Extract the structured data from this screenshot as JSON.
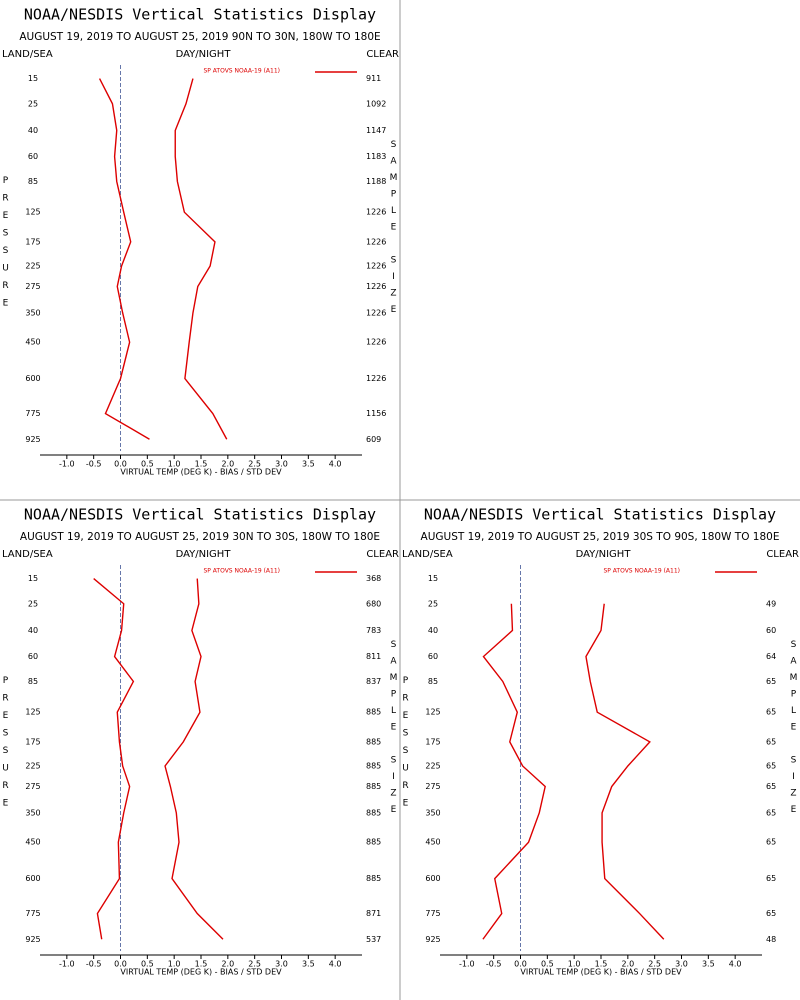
{
  "chart_data": [
    {
      "type": "line",
      "title": "NOAA/NESDIS Vertical Statistics Display",
      "subtitle": "AUGUST 19, 2019 TO AUGUST 25, 2019 90N TO 30N, 180W TO 180E",
      "land_sea_label": "LAND/SEA",
      "day_night_label": "DAY/NIGHT",
      "clear_label": "CLEAR",
      "ylabel": "PRESSURE",
      "y2label": "SAMPLE SIZE",
      "xlabel": "VIRTUAL TEMP (DEG K) - BIAS / STD DEV",
      "xlim": [
        -1.5,
        4.5
      ],
      "xticks": [
        {
          "value": -1,
          "label": "-1.0"
        },
        -0.5,
        {
          "value": 0,
          "label": "0.0"
        },
        0.5,
        {
          "value": 1,
          "label": "1.0"
        },
        1.5,
        {
          "value": 2,
          "label": "2.0"
        },
        2.5,
        {
          "value": 3,
          "label": "3.0"
        },
        3.5,
        {
          "value": 4,
          "label": "4.0"
        }
      ],
      "ylim": [
        10,
        1000
      ],
      "yticks": [
        15,
        25,
        40,
        60,
        85,
        125,
        175,
        225,
        275,
        350,
        450,
        600,
        775,
        925
      ],
      "sample_sizes": [
        911,
        1092,
        1147,
        1183,
        1188,
        1226,
        1226,
        1226,
        1226,
        1226,
        1226,
        1226,
        1156,
        609
      ],
      "zero_line": true,
      "series": [
        {
          "name": "SP ATOVS NOAA-19 (A11)",
          "color": "#dd0000",
          "values": [
            -0.39,
            -0.15,
            -0.07,
            -0.11,
            -0.07,
            0.06,
            0.19,
            0.02,
            -0.06,
            0.04,
            0.17,
            0,
            -0.28,
            0.54
          ]
        },
        {
          "color": "#dd0000",
          "values": [
            1.35,
            1.22,
            1.02,
            1.02,
            1.06,
            1.19,
            1.76,
            1.67,
            1.44,
            1.35,
            1.28,
            1.2,
            1.72,
            1.98
          ]
        }
      ]
    },
    {
      "type": "line",
      "title": "NOAA/NESDIS Vertical Statistics Display",
      "subtitle": "AUGUST 19, 2019 TO AUGUST 25, 2019 30N TO 30S, 180W TO 180E",
      "land_sea_label": "LAND/SEA",
      "day_night_label": "DAY/NIGHT",
      "clear_label": "CLEAR",
      "ylabel": "PRESSURE",
      "y2label": "SAMPLE SIZE",
      "xlabel": "VIRTUAL TEMP (DEG K) - BIAS / STD DEV",
      "xlim": [
        -1.5,
        4.5
      ],
      "xticks": [
        {
          "value": -1,
          "label": "-1.0"
        },
        -0.5,
        {
          "value": 0,
          "label": "0.0"
        },
        0.5,
        {
          "value": 1,
          "label": "1.0"
        },
        1.5,
        {
          "value": 2,
          "label": "2.0"
        },
        2.5,
        {
          "value": 3,
          "label": "3.0"
        },
        3.5,
        {
          "value": 4,
          "label": "4.0"
        }
      ],
      "ylim": [
        10,
        1000
      ],
      "yticks": [
        15,
        25,
        40,
        60,
        85,
        125,
        175,
        225,
        275,
        350,
        450,
        600,
        775,
        925
      ],
      "sample_sizes": [
        368,
        680,
        783,
        811,
        837,
        885,
        885,
        885,
        885,
        885,
        885,
        885,
        871,
        537
      ],
      "zero_line": true,
      "series": [
        {
          "name": "SP ATOVS NOAA-19 (A11)",
          "color": "#dd0000",
          "values": [
            -0.5,
            0.06,
            0.02,
            -0.11,
            0.24,
            -0.06,
            -0.02,
            0.04,
            0.17,
            0.06,
            -0.04,
            -0.02,
            -0.43,
            -0.35
          ]
        },
        {
          "color": "#dd0000",
          "values": [
            1.43,
            1.46,
            1.33,
            1.5,
            1.39,
            1.48,
            1.17,
            0.83,
            0.93,
            1.04,
            1.09,
            0.96,
            1.43,
            1.91
          ]
        }
      ]
    },
    {
      "type": "line",
      "title": "NOAA/NESDIS Vertical Statistics Display",
      "subtitle": "AUGUST 19, 2019 TO AUGUST 25, 2019 30S TO 90S, 180W TO 180E",
      "land_sea_label": "LAND/SEA",
      "day_night_label": "DAY/NIGHT",
      "clear_label": "CLEAR",
      "ylabel": "PRESSURE",
      "y2label": "SAMPLE SIZE",
      "xlabel": "VIRTUAL TEMP (DEG K) - BIAS / STD DEV",
      "xlim": [
        -1.5,
        4.5
      ],
      "xticks": [
        {
          "value": -1,
          "label": "-1.0"
        },
        -0.5,
        {
          "value": 0,
          "label": "0.0"
        },
        0.5,
        {
          "value": 1,
          "label": "1.0"
        },
        1.5,
        {
          "value": 2,
          "label": "2.0"
        },
        2.5,
        {
          "value": 3,
          "label": "3.0"
        },
        3.5,
        {
          "value": 4,
          "label": "4.0"
        }
      ],
      "ylim": [
        10,
        1000
      ],
      "yticks": [
        15,
        25,
        40,
        60,
        85,
        125,
        175,
        225,
        275,
        350,
        450,
        600,
        775,
        925
      ],
      "sample_sizes": [
        null,
        49,
        60,
        64,
        65,
        65,
        65,
        65,
        65,
        65,
        65,
        65,
        65,
        48
      ],
      "zero_line": true,
      "series": [
        {
          "name": "SP ATOVS NOAA-19 (A11)",
          "color": "#dd0000",
          "values": [
            null,
            -0.17,
            -0.15,
            -0.69,
            -0.33,
            -0.06,
            -0.2,
            0.04,
            0.46,
            0.35,
            0.15,
            -0.48,
            -0.35,
            -0.7
          ]
        },
        {
          "color": "#dd0000",
          "values": [
            null,
            1.56,
            1.5,
            1.22,
            1.3,
            1.43,
            2.41,
            2.0,
            1.7,
            1.52,
            1.52,
            1.57,
            2.22,
            2.67
          ]
        }
      ]
    }
  ]
}
